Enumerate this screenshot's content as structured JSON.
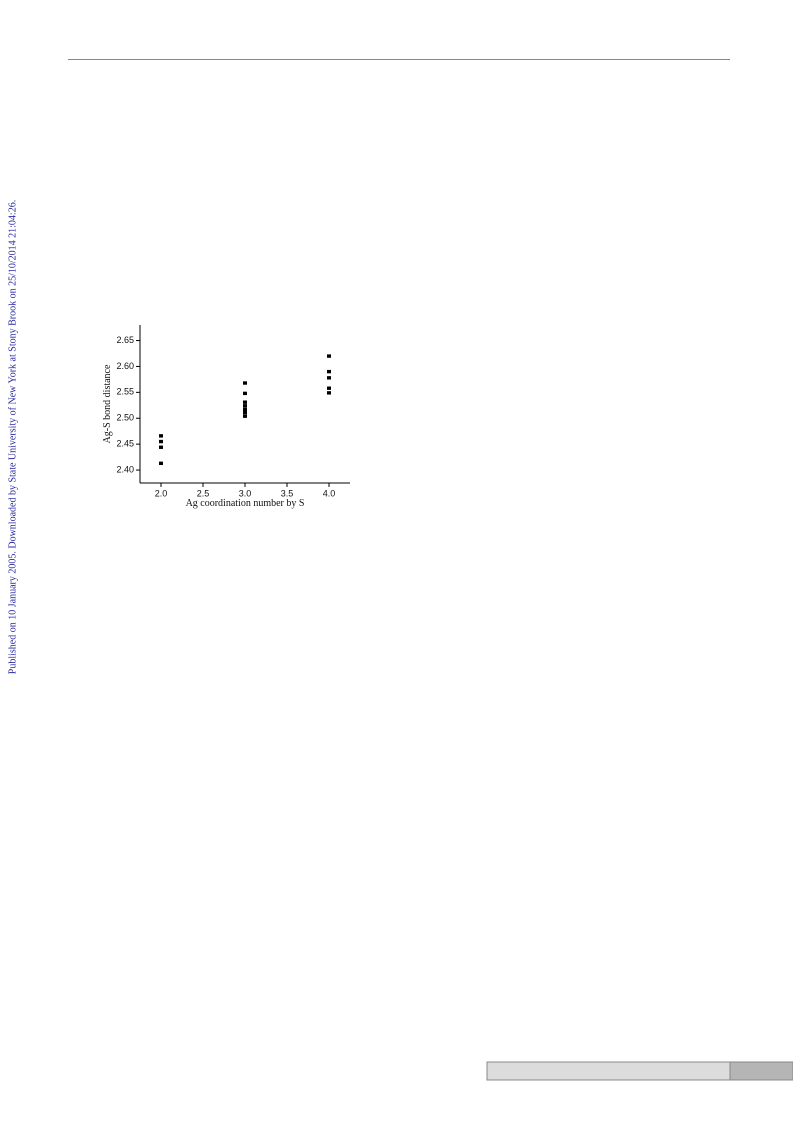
{
  "sidebar": "Published on 10 January 2005. Downloaded by State University of New York at Stony Brook on 25/10/2014 21:04:26.",
  "chart_data": {
    "type": "scatter",
    "x_label": "Ag coordination number by S",
    "y_label": "Ag-S bond distance",
    "x": [
      2,
      2,
      2,
      2,
      3,
      3,
      3,
      3,
      3,
      3,
      3,
      4,
      4,
      4,
      4,
      4
    ],
    "values": [
      2.466,
      2.455,
      2.444,
      2.413,
      2.568,
      2.548,
      2.531,
      2.524,
      2.517,
      2.511,
      2.504,
      2.62,
      2.59,
      2.578,
      2.558,
      2.549
    ],
    "color": "#000000",
    "xlim": [
      1.75,
      4.25
    ],
    "ylim": [
      2.375,
      2.68
    ],
    "xticks": [
      {
        "value": 2,
        "label": "2.0"
      },
      2.5,
      {
        "value": 3,
        "label": "3.0"
      },
      3.5,
      {
        "value": 4,
        "label": "4.0"
      }
    ],
    "yticks": [
      {
        "value": 2.4,
        "label": "2.40"
      },
      2.45,
      {
        "value": 2.5,
        "label": "2.50"
      },
      2.55,
      {
        "value": 2.6,
        "label": "2.60"
      },
      2.65
    ]
  }
}
